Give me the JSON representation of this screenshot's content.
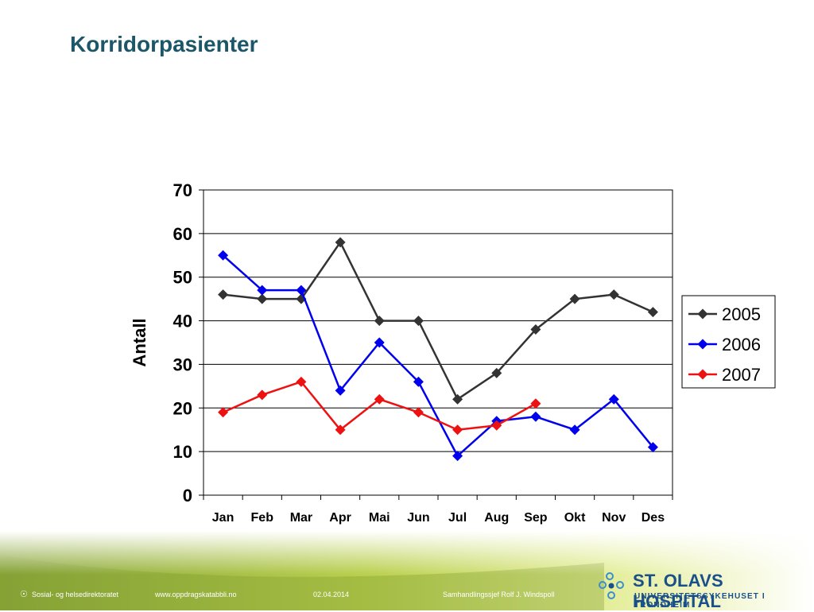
{
  "slide": {
    "title": "Korridorpasienter"
  },
  "chart_data": {
    "type": "line",
    "title": "",
    "xlabel": "",
    "ylabel": "Antall",
    "ylim": [
      0,
      70
    ],
    "yticks": [
      0,
      10,
      20,
      30,
      40,
      50,
      60,
      70
    ],
    "grid": true,
    "legend": "right",
    "categories": [
      "Jan",
      "Feb",
      "Mar",
      "Apr",
      "Mai",
      "Jun",
      "Jul",
      "Aug",
      "Sep",
      "Okt",
      "Nov",
      "Des"
    ],
    "series": [
      {
        "name": "2005",
        "color": "#333333",
        "values": [
          46,
          45,
          45,
          58,
          40,
          40,
          22,
          28,
          38,
          45,
          46,
          42
        ]
      },
      {
        "name": "2006",
        "color": "#0000ee",
        "values": [
          55,
          47,
          47,
          24,
          35,
          26,
          9,
          17,
          18,
          15,
          22,
          11
        ]
      },
      {
        "name": "2007",
        "color": "#ee1111",
        "values": [
          19,
          23,
          26,
          15,
          22,
          19,
          15,
          16,
          21,
          null,
          null,
          null
        ]
      }
    ]
  },
  "footer": {
    "org_text": "Sosial- og helsedirektoratet",
    "website": "www.oppdragskatabbli.no",
    "date": "02.04.2014",
    "presenter": "Samhandlingssjef Rolf J. Windspoll",
    "logo_name": "ST. OLAVS HOSPITAL",
    "logo_subtitle": "UNIVERSITETSSYKEHUSET I TRONDHEIM"
  }
}
